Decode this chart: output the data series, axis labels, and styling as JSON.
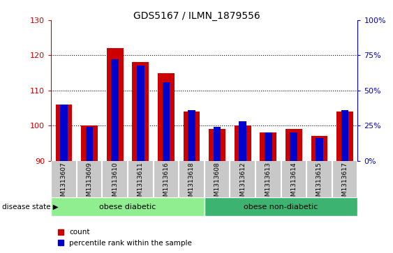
{
  "title": "GDS5167 / ILMN_1879556",
  "categories": [
    "GSM1313607",
    "GSM1313609",
    "GSM1313610",
    "GSM1313611",
    "GSM1313616",
    "GSM1313618",
    "GSM1313608",
    "GSM1313612",
    "GSM1313613",
    "GSM1313614",
    "GSM1313615",
    "GSM1313617"
  ],
  "red_values": [
    106,
    100,
    122,
    118,
    115,
    104,
    99,
    100,
    98,
    99,
    97,
    104
  ],
  "blue_percentile": [
    40,
    24,
    72,
    68,
    56,
    36,
    24,
    28,
    20,
    20,
    16,
    36
  ],
  "ymin": 90,
  "ymax": 130,
  "yticks": [
    90,
    100,
    110,
    120,
    130
  ],
  "right_yticks": [
    0,
    25,
    50,
    75,
    100
  ],
  "red_color": "#cc0000",
  "blue_color": "#0000cc",
  "group1_label": "obese diabetic",
  "group2_label": "obese non-diabetic",
  "group1_count": 6,
  "group2_count": 6,
  "disease_state_label": "disease state",
  "legend_count": "count",
  "legend_percentile": "percentile rank within the sample",
  "xlabel_bg": "#c8c8c8",
  "group1_color": "#90EE90",
  "group2_color": "#3CB371"
}
